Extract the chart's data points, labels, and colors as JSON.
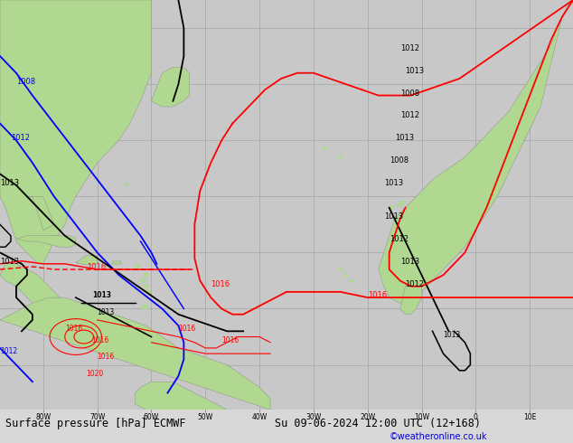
{
  "title": "Surface pressure [hPa] ECMWF",
  "subtitle": "Su 09-06-2024 12:00 UTC (12+168)",
  "credit": "©weatheronline.co.uk",
  "figsize": [
    6.34,
    4.9
  ],
  "dpi": 100,
  "bg_ocean": "#c8c8c8",
  "bg_land": "#b0d890",
  "bg_fig": "#d8d8d8",
  "grid_color": "#aaaaaa",
  "grid_lw": 0.6,
  "text_color": "#000000",
  "credit_color": "#0000cc",
  "title_fontsize": 8.5,
  "credit_fontsize": 7,
  "tick_fontsize": 5.5,
  "label_fontsize": 7,
  "contour_lw": 1.3
}
